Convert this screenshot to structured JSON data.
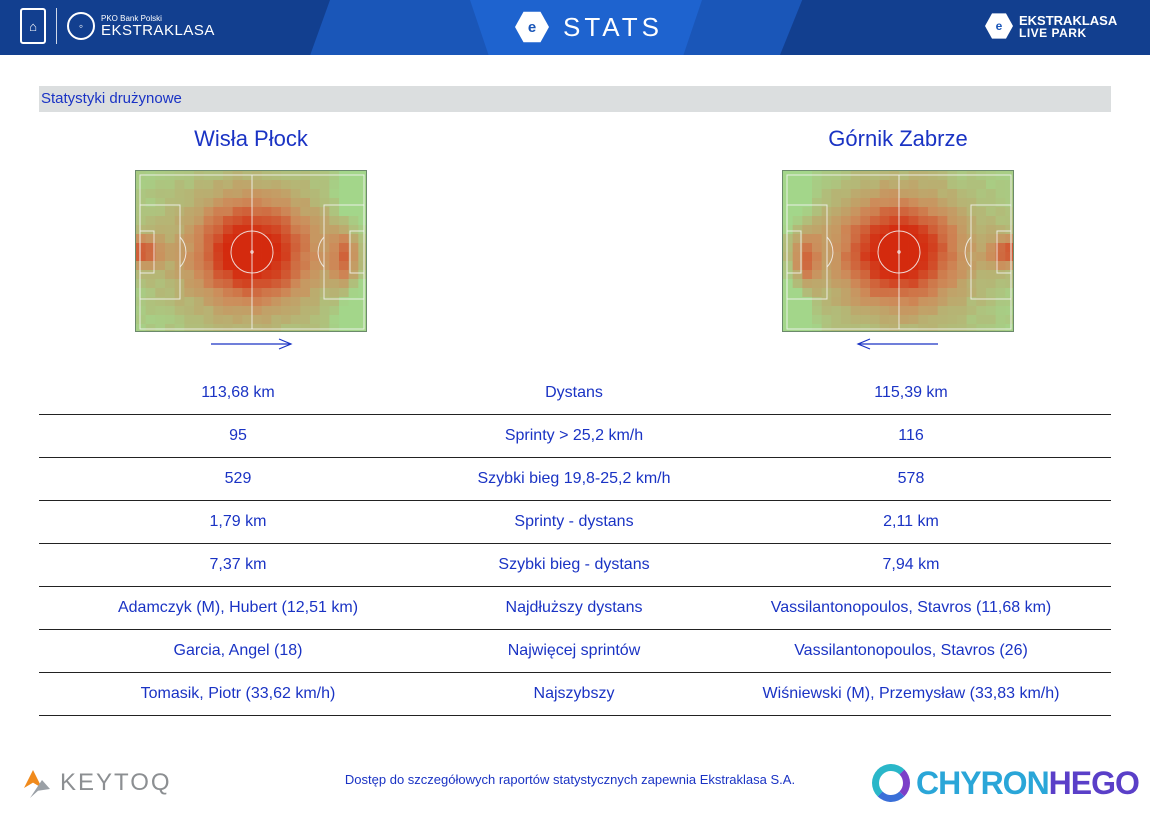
{
  "header": {
    "left_logo_icon": "pko-logo-icon",
    "left_brand_small": "PKO Bank Polski",
    "left_brand_big": "EKSTRAKLASA",
    "center_title": "STATS",
    "right_brand_line1": "EKSTRAKLASA",
    "right_brand_line2": "LIVE PARK"
  },
  "section_title": "Statystyki drużynowe",
  "teams": {
    "home": {
      "name": "Wisła Płock",
      "direction": "right"
    },
    "away": {
      "name": "Górnik Zabrze",
      "direction": "left"
    }
  },
  "stats_rows": [
    {
      "home": "113,68 km",
      "label": "Dystans",
      "away": "115,39 km"
    },
    {
      "home": "95",
      "label": "Sprinty > 25,2 km/h",
      "away": "116"
    },
    {
      "home": "529",
      "label": "Szybki bieg 19,8-25,2 km/h",
      "away": "578"
    },
    {
      "home": "1,79 km",
      "label": "Sprinty - dystans",
      "away": "2,11 km"
    },
    {
      "home": "7,37 km",
      "label": "Szybki bieg - dystans",
      "away": "7,94 km"
    },
    {
      "home": "Adamczyk (M), Hubert (12,51 km)",
      "label": "Najdłuższy dystans",
      "away": "Vassilantonopoulos, Stavros (11,68 km)"
    },
    {
      "home": "Garcia, Angel (18)",
      "label": "Najwięcej sprintów",
      "away": "Vassilantonopoulos, Stavros (26)"
    },
    {
      "home": "Tomasik, Piotr (33,62 km/h)",
      "label": "Najszybszy",
      "away": "Wiśniewski (M), Przemysław (33,83 km/h)"
    }
  ],
  "footer": {
    "left_logo": "KEYTOQ",
    "note": "Dostęp do szczegółowych raportów statystycznych zapewnia Ekstraklasa S.A.",
    "right_logo_a": "CHYRON",
    "right_logo_b": "HEGO"
  },
  "colors": {
    "header_blue": "#1a56b8",
    "text_blue": "#1a33c4",
    "heat_low": "#a3d68a",
    "heat_high": "#d42a0e"
  }
}
